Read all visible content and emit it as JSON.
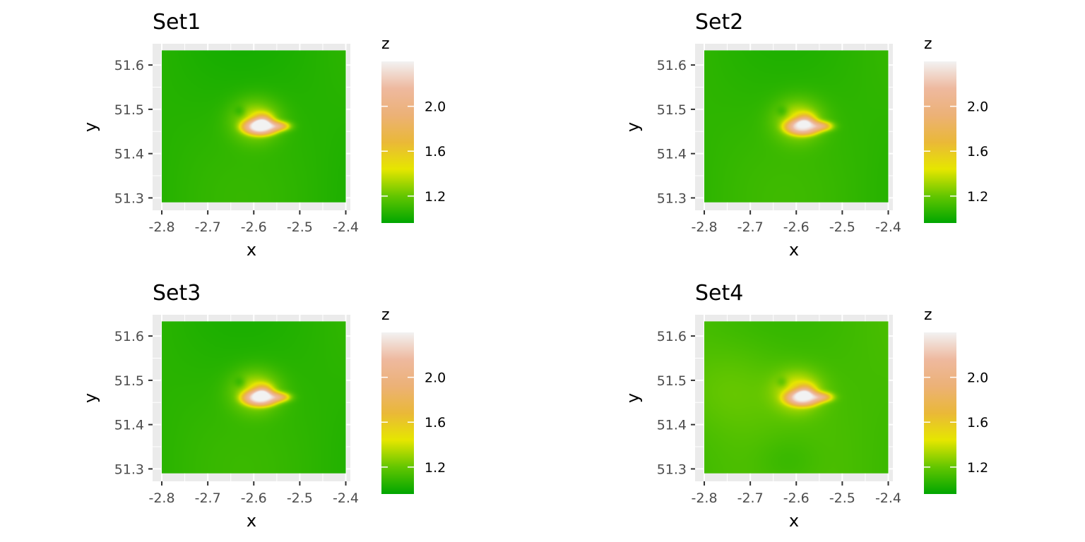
{
  "chart_data": [
    {
      "type": "heatmap",
      "title": "Set1",
      "xlabel": "x",
      "ylabel": "y",
      "xlim": [
        -2.82,
        -2.39
      ],
      "ylim": [
        51.272,
        51.648
      ],
      "raster_extent": {
        "x": [
          -2.8,
          -2.4
        ],
        "y": [
          51.29,
          51.633
        ]
      },
      "x_ticks": [
        -2.8,
        -2.7,
        -2.6,
        -2.5,
        -2.4
      ],
      "x_tick_labels": [
        "-2.8",
        "-2.7",
        "-2.6",
        "-2.5",
        "-2.4"
      ],
      "y_ticks": [
        51.3,
        51.4,
        51.5,
        51.6
      ],
      "y_tick_labels": [
        "51.3",
        "51.4",
        "51.5",
        "51.6"
      ],
      "legend": {
        "title": "z",
        "placement": "right",
        "range": [
          0.96,
          2.4
        ],
        "breaks": [
          1.2,
          1.6,
          2.0
        ],
        "break_labels": [
          "1.2",
          "1.6",
          "2.0"
        ]
      },
      "colormap": [
        "#00a600",
        "#63c600",
        "#e6e600",
        "#eab838",
        "#ecb176",
        "#eeb99f",
        "#f2f2f2"
      ],
      "grid": true,
      "background_z": 1.05,
      "hotspot_z_max": 2.35,
      "corner_shading": false,
      "peak": {
        "x": -2.585,
        "y": 51.46
      }
    },
    {
      "type": "heatmap",
      "title": "Set2",
      "xlabel": "x",
      "ylabel": "y",
      "xlim": [
        -2.82,
        -2.39
      ],
      "ylim": [
        51.272,
        51.648
      ],
      "raster_extent": {
        "x": [
          -2.8,
          -2.4
        ],
        "y": [
          51.29,
          51.633
        ]
      },
      "x_ticks": [
        -2.8,
        -2.7,
        -2.6,
        -2.5,
        -2.4
      ],
      "x_tick_labels": [
        "-2.8",
        "-2.7",
        "-2.6",
        "-2.5",
        "-2.4"
      ],
      "y_ticks": [
        51.3,
        51.4,
        51.5,
        51.6
      ],
      "y_tick_labels": [
        "51.3",
        "51.4",
        "51.5",
        "51.6"
      ],
      "legend": {
        "title": "z",
        "placement": "right",
        "range": [
          0.96,
          2.4
        ],
        "breaks": [
          1.2,
          1.6,
          2.0
        ],
        "break_labels": [
          "1.2",
          "1.6",
          "2.0"
        ]
      },
      "colormap": [
        "#00a600",
        "#63c600",
        "#e6e600",
        "#eab838",
        "#ecb176",
        "#eeb99f",
        "#f2f2f2"
      ],
      "grid": true,
      "background_z": 1.07,
      "hotspot_z_max": 2.2,
      "corner_shading": false,
      "peak": {
        "x": -2.585,
        "y": 51.46
      }
    },
    {
      "type": "heatmap",
      "title": "Set3",
      "xlabel": "x",
      "ylabel": "y",
      "xlim": [
        -2.82,
        -2.39
      ],
      "ylim": [
        51.272,
        51.648
      ],
      "raster_extent": {
        "x": [
          -2.8,
          -2.4
        ],
        "y": [
          51.29,
          51.633
        ]
      },
      "x_ticks": [
        -2.8,
        -2.7,
        -2.6,
        -2.5,
        -2.4
      ],
      "x_tick_labels": [
        "-2.8",
        "-2.7",
        "-2.6",
        "-2.5",
        "-2.4"
      ],
      "y_ticks": [
        51.3,
        51.4,
        51.5,
        51.6
      ],
      "y_tick_labels": [
        "51.3",
        "51.4",
        "51.5",
        "51.6"
      ],
      "legend": {
        "title": "z",
        "placement": "right",
        "range": [
          0.96,
          2.4
        ],
        "breaks": [
          1.2,
          1.6,
          2.0
        ],
        "break_labels": [
          "1.2",
          "1.6",
          "2.0"
        ]
      },
      "colormap": [
        "#00a600",
        "#63c600",
        "#e6e600",
        "#eab838",
        "#ecb176",
        "#eeb99f",
        "#f2f2f2"
      ],
      "grid": true,
      "background_z": 1.06,
      "hotspot_z_max": 2.3,
      "corner_shading": false,
      "peak": {
        "x": -2.585,
        "y": 51.46
      }
    },
    {
      "type": "heatmap",
      "title": "Set4",
      "xlabel": "x",
      "ylabel": "y",
      "xlim": [
        -2.82,
        -2.39
      ],
      "ylim": [
        51.272,
        51.648
      ],
      "raster_extent": {
        "x": [
          -2.8,
          -2.4
        ],
        "y": [
          51.29,
          51.633
        ]
      },
      "x_ticks": [
        -2.8,
        -2.7,
        -2.6,
        -2.5,
        -2.4
      ],
      "x_tick_labels": [
        "-2.8",
        "-2.7",
        "-2.6",
        "-2.5",
        "-2.4"
      ],
      "y_ticks": [
        51.3,
        51.4,
        51.5,
        51.6
      ],
      "y_tick_labels": [
        "51.3",
        "51.4",
        "51.5",
        "51.6"
      ],
      "legend": {
        "title": "z",
        "placement": "right",
        "range": [
          0.96,
          2.4
        ],
        "breaks": [
          1.2,
          1.6,
          2.0
        ],
        "break_labels": [
          "1.2",
          "1.6",
          "2.0"
        ]
      },
      "colormap": [
        "#00a600",
        "#63c600",
        "#e6e600",
        "#eab838",
        "#ecb176",
        "#eeb99f",
        "#f2f2f2"
      ],
      "grid": true,
      "background_z": 1.12,
      "hotspot_z_max": 2.25,
      "corner_shading": true,
      "peak": {
        "x": -2.585,
        "y": 51.46
      }
    }
  ],
  "colors": {
    "panel_background": "#ebebeb",
    "grid_line": "#ffffff",
    "tick_mark": "#333333",
    "tick_text": "#4d4d4d",
    "text": "#000000"
  }
}
